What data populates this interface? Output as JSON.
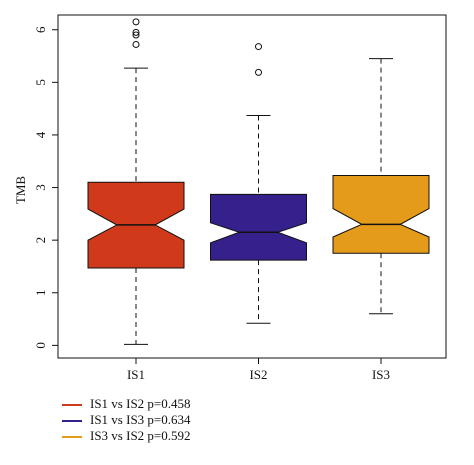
{
  "chart_data": {
    "type": "box",
    "y_label": "TMB",
    "categories": [
      "IS1",
      "IS2",
      "IS3"
    ],
    "boxes": [
      {
        "color": "#d03a1a",
        "min": 0.02,
        "q1": 1.47,
        "median": 2.29,
        "q3": 3.1,
        "max": 5.27,
        "notch_low": 2.0,
        "notch_high": 2.59,
        "outliers": [
          5.72,
          5.9,
          5.95,
          6.15
        ]
      },
      {
        "color": "#35208c",
        "min": 0.42,
        "q1": 1.62,
        "median": 2.15,
        "q3": 2.87,
        "max": 4.37,
        "notch_low": 1.95,
        "notch_high": 2.33,
        "outliers": [
          5.19,
          5.68
        ]
      },
      {
        "color": "#e59b1a",
        "min": 0.6,
        "q1": 1.75,
        "median": 2.3,
        "q3": 3.23,
        "max": 5.45,
        "notch_low": 2.06,
        "notch_high": 2.6,
        "outliers": []
      }
    ],
    "ylim": [
      -0.24,
      6.28
    ],
    "yticks": [
      0,
      1,
      2,
      3,
      4,
      5,
      6
    ],
    "legend": [
      {
        "label": "IS1 vs IS2 p=0.458",
        "color": "#d03a1a"
      },
      {
        "label": "IS1 vs IS3 p=0.634",
        "color": "#35208c"
      },
      {
        "label": "IS3 vs IS2 p=0.592",
        "color": "#e59b1a"
      }
    ]
  }
}
